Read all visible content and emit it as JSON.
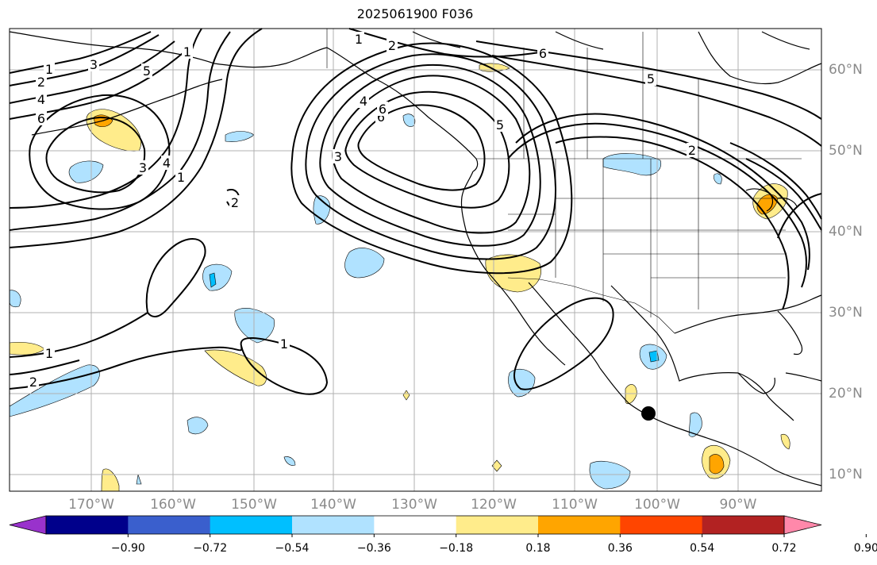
{
  "title": "2025061900 F036",
  "map": {
    "longitude_labels": [
      "170°W",
      "160°W",
      "150°W",
      "140°W",
      "130°W",
      "120°W",
      "110°W",
      "100°W",
      "90°W"
    ],
    "latitude_labels": [
      "60°N",
      "50°N",
      "40°N",
      "30°N",
      "20°N",
      "10°N"
    ],
    "contour_labels": [
      "1",
      "2",
      "4",
      "6",
      "3",
      "5",
      "1",
      "6",
      "2",
      "1",
      "4",
      "6",
      "3",
      "5",
      "4",
      "3",
      "1",
      "2",
      "6",
      "5",
      "2",
      "1",
      "1",
      "2"
    ],
    "colors": {
      "gridline": "#b0b0b0",
      "contour": "#000000",
      "coastline": "#000000",
      "marker": "#000000"
    }
  },
  "colorbar": {
    "ticks": [
      "−0.90",
      "−0.72",
      "−0.54",
      "−0.36",
      "−0.18",
      "0.18",
      "0.36",
      "0.54",
      "0.72",
      "0.90"
    ],
    "colors": [
      "#9932cc",
      "#00008b",
      "#3a5fcd",
      "#00bfff",
      "#b0e2ff",
      "#ffffff",
      "#ffec8b",
      "#ffa500",
      "#ff4500",
      "#b22222",
      "#ff88aa"
    ]
  }
}
